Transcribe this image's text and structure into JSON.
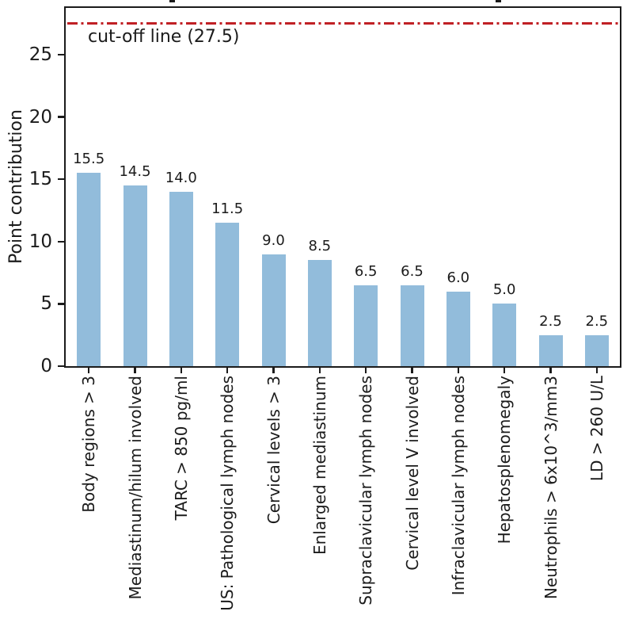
{
  "chart_data": {
    "type": "bar",
    "title": "",
    "xlabel": "",
    "ylabel": "Point contribution",
    "ylim": [
      0,
      28.75
    ],
    "yticks": [
      0,
      5,
      10,
      15,
      20,
      25
    ],
    "ytick_labels": [
      "0",
      "5",
      "10",
      "15",
      "20",
      "25"
    ],
    "categories": [
      "Body regions > 3",
      "Mediastinum/hilum involved",
      "TARC > 850 pg/ml",
      "US: Pathological lymph nodes",
      "Cervical levels > 3",
      "Enlarged mediastinum",
      "Supraclavicular lymph nodes",
      "Cervical level V involved",
      "Infraclavicular lymph nodes",
      "Hepatosplenomegaly",
      "Neutrophils > 6x10^3/mm3",
      "LD > 260 U/L"
    ],
    "values": [
      15.5,
      14.5,
      14.0,
      11.5,
      9.0,
      8.5,
      6.5,
      6.5,
      6.0,
      5.0,
      2.5,
      2.5
    ],
    "value_labels": [
      "15.5",
      "14.5",
      "14.0",
      "11.5",
      "9.0",
      "8.5",
      "6.5",
      "6.5",
      "6.0",
      "5.0",
      "2.5",
      "2.5"
    ],
    "cutoff": {
      "value": 27.5,
      "label": "cut-off line (27.5)"
    },
    "grid": false,
    "legend_position": "none",
    "colors": {
      "bar_fill": "#92bcdb",
      "cutoff_line": "#c02025",
      "axis": "#1b1b1b",
      "text": "#1b1b1b"
    }
  }
}
